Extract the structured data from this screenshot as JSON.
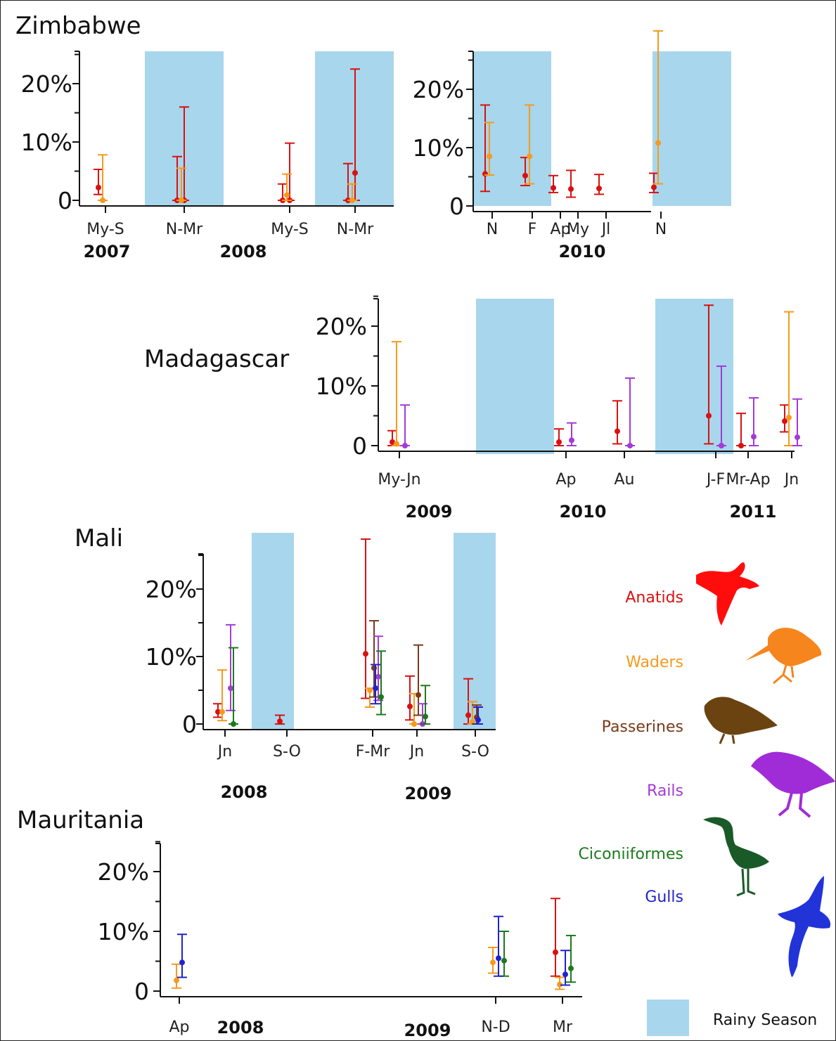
{
  "colors": {
    "rain": "#a8d6ec",
    "Anatids": "#d81111",
    "Waders": "#f59a1c",
    "Passerines": "#7a3a19",
    "Rails": "#a33bd6",
    "Ciconiiformes": "#1c7a1c",
    "Gulls": "#2222cc"
  },
  "legend": {
    "items": [
      {
        "label": "Anatids",
        "icon": "duck-silhouette-icon"
      },
      {
        "label": "Waders",
        "icon": "wader-silhouette-icon"
      },
      {
        "label": "Passerines",
        "icon": "sparrow-silhouette-icon"
      },
      {
        "label": "Rails",
        "icon": "rail-silhouette-icon"
      },
      {
        "label": "Ciconiiformes",
        "icon": "heron-silhouette-icon"
      },
      {
        "label": "Gulls",
        "icon": "gull-silhouette-icon"
      }
    ],
    "rainy_label": "Rainy Season"
  },
  "chart_data": [
    {
      "type": "scatter",
      "country": "Zimbabwe",
      "title": "Zimbabwe",
      "ylim": [
        0,
        26
      ],
      "yticks": [
        "0",
        "10%",
        "20%"
      ],
      "categories": [
        "My-S",
        "N-Mr",
        "My-S",
        "N-Mr"
      ],
      "years": [
        "2007",
        "2008"
      ],
      "series": [
        {
          "name": "Anatids",
          "points": [
            {
              "cat": 0,
              "y": 2.2,
              "lo": 1,
              "hi": 5.3
            },
            {
              "cat": 1,
              "y": 0,
              "lo": 0,
              "hi": 7.5
            },
            {
              "cat": 1,
              "y": 0,
              "lo": 0,
              "hi": 16
            },
            {
              "cat": 2,
              "y": 0,
              "lo": 0,
              "hi": 2.8
            },
            {
              "cat": 2,
              "y": 0,
              "lo": 0,
              "hi": 9.8
            },
            {
              "cat": 3,
              "y": 0,
              "lo": 0,
              "hi": 6.3
            },
            {
              "cat": 3,
              "y": 4.7,
              "lo": 0,
              "hi": 22.5
            }
          ]
        },
        {
          "name": "Waders",
          "points": [
            {
              "cat": 0,
              "y": 0,
              "lo": 0,
              "hi": 7.8
            },
            {
              "cat": 1,
              "y": 0,
              "lo": 0,
              "hi": 5.5
            },
            {
              "cat": 2,
              "y": 0.9,
              "lo": 0,
              "hi": 4.5
            },
            {
              "cat": 3,
              "y": 0,
              "lo": 0,
              "hi": 2.8
            }
          ]
        }
      ]
    },
    {
      "type": "scatter",
      "country": "Zimbabwe",
      "ylim": [
        0,
        26
      ],
      "yticks": [
        "0",
        "10%",
        "20%"
      ],
      "categories": [
        "N",
        "F",
        "Ap",
        "My",
        "Jl",
        "N"
      ],
      "years": [
        "2010"
      ],
      "series": [
        {
          "name": "Anatids",
          "points": [
            {
              "cat": 0,
              "y": 5.5,
              "lo": 2.5,
              "hi": 17.3
            },
            {
              "cat": 1,
              "y": 5.2,
              "lo": 3.5,
              "hi": 8.3
            },
            {
              "cat": 2,
              "y": 3.1,
              "lo": 2.3,
              "hi": 5.2
            },
            {
              "cat": 3,
              "y": 2.9,
              "lo": 1.5,
              "hi": 6.1
            },
            {
              "cat": 4,
              "y": 3,
              "lo": 2,
              "hi": 5.4
            },
            {
              "cat": 5,
              "y": 3.2,
              "lo": 2.3,
              "hi": 5.6
            }
          ]
        },
        {
          "name": "Waders",
          "points": [
            {
              "cat": 0,
              "y": 8.5,
              "lo": 5.3,
              "hi": 14.3
            },
            {
              "cat": 1,
              "y": 8.5,
              "lo": 3.8,
              "hi": 17.3
            },
            {
              "cat": 5,
              "y": 10.8,
              "lo": 3.8,
              "hi": 30
            }
          ]
        }
      ]
    },
    {
      "type": "scatter",
      "country": "Madagascar",
      "title": "Madagascar",
      "ylim": [
        0,
        25
      ],
      "yticks": [
        "0",
        "10%",
        "20%"
      ],
      "categories": [
        "My-Jn",
        "Ap",
        "Au",
        "J-F",
        "Mr-Ap",
        "Jn"
      ],
      "years": [
        "2009",
        "2010",
        "2011"
      ],
      "series": [
        {
          "name": "Anatids",
          "points": [
            {
              "cat": 0,
              "y": 0.6,
              "lo": 0,
              "hi": 2.5
            },
            {
              "cat": 1,
              "y": 0.6,
              "lo": 0,
              "hi": 2.8
            },
            {
              "cat": 2,
              "y": 2.4,
              "lo": 0.3,
              "hi": 7.5
            },
            {
              "cat": 3,
              "y": 5,
              "lo": 0.3,
              "hi": 23.5
            },
            {
              "cat": 4,
              "y": 0,
              "lo": 0,
              "hi": 5.4
            },
            {
              "cat": 5,
              "y": 4.1,
              "lo": 2.3,
              "hi": 6.8
            }
          ]
        },
        {
          "name": "Waders",
          "points": [
            {
              "cat": 0,
              "y": 0.3,
              "lo": 0,
              "hi": 17.4
            },
            {
              "cat": 5,
              "y": 4.7,
              "lo": 0,
              "hi": 22.4
            }
          ]
        },
        {
          "name": "Rails",
          "points": [
            {
              "cat": 0,
              "y": 0,
              "lo": 0,
              "hi": 6.8
            },
            {
              "cat": 1,
              "y": 0.9,
              "lo": 0,
              "hi": 3.8
            },
            {
              "cat": 2,
              "y": 0,
              "lo": 0,
              "hi": 11.3
            },
            {
              "cat": 3,
              "y": 0,
              "lo": 0,
              "hi": 13.3
            },
            {
              "cat": 4,
              "y": 1.5,
              "lo": 0,
              "hi": 8
            },
            {
              "cat": 5,
              "y": 1.4,
              "lo": 0,
              "hi": 7.8
            }
          ]
        }
      ]
    },
    {
      "type": "scatter",
      "country": "Mali",
      "title": "Mali",
      "ylim": [
        0,
        26
      ],
      "yticks": [
        "0",
        "10%",
        "20%"
      ],
      "categories": [
        "Jn",
        "S-O",
        "F-Mr",
        "Jn",
        "S-O"
      ],
      "years": [
        "2008",
        "2009"
      ],
      "series": [
        {
          "name": "Anatids",
          "points": [
            {
              "cat": 0,
              "y": 1.8,
              "lo": 1,
              "hi": 3
            },
            {
              "cat": 1,
              "y": 0.4,
              "lo": 0,
              "hi": 1.3
            },
            {
              "cat": 2,
              "y": 10.4,
              "lo": 3.8,
              "hi": 27.4
            },
            {
              "cat": 3,
              "y": 2.6,
              "lo": 0.6,
              "hi": 7.1
            },
            {
              "cat": 4,
              "y": 1.3,
              "lo": 0,
              "hi": 6.7
            }
          ]
        },
        {
          "name": "Waders",
          "points": [
            {
              "cat": 0,
              "y": 1.8,
              "lo": 0.5,
              "hi": 8
            },
            {
              "cat": 2,
              "y": 5,
              "lo": 2.5,
              "hi": 5.3
            },
            {
              "cat": 3,
              "y": 0,
              "lo": 0,
              "hi": 4.5
            },
            {
              "cat": 4,
              "y": 0.3,
              "lo": 0,
              "hi": 3.3
            }
          ]
        },
        {
          "name": "Passerines",
          "points": [
            {
              "cat": 2,
              "y": 8.3,
              "lo": 4,
              "hi": 15.3
            },
            {
              "cat": 3,
              "y": 4.3,
              "lo": 1.3,
              "hi": 11.7
            },
            {
              "cat": 4,
              "y": 1,
              "lo": 0,
              "hi": 2.8
            }
          ]
        },
        {
          "name": "Rails",
          "points": [
            {
              "cat": 0,
              "y": 5.3,
              "lo": 2,
              "hi": 14.7
            },
            {
              "cat": 2,
              "y": 7,
              "lo": 3.5,
              "hi": 13
            },
            {
              "cat": 3,
              "y": 0,
              "lo": 0,
              "hi": 3
            }
          ]
        },
        {
          "name": "Ciconiiformes",
          "points": [
            {
              "cat": 0,
              "y": 0,
              "lo": 0,
              "hi": 11.3
            },
            {
              "cat": 2,
              "y": 4,
              "lo": 1.4,
              "hi": 10.8
            },
            {
              "cat": 3,
              "y": 1.1,
              "lo": 0,
              "hi": 5.7
            }
          ]
        },
        {
          "name": "Gulls",
          "points": [
            {
              "cat": 2,
              "y": 5.3,
              "lo": 3,
              "hi": 8.8
            },
            {
              "cat": 4,
              "y": 0.6,
              "lo": 0,
              "hi": 2.5
            }
          ]
        }
      ]
    },
    {
      "type": "scatter",
      "country": "Mauritania",
      "title": "Mauritania",
      "ylim": [
        0,
        25
      ],
      "yticks": [
        "0",
        "10%",
        "20%"
      ],
      "categories": [
        "Ap",
        "N-D",
        "Mr"
      ],
      "years": [
        "2008",
        "2009"
      ],
      "series": [
        {
          "name": "Anatids",
          "points": [
            {
              "cat": 2,
              "y": 6.5,
              "lo": 2.5,
              "hi": 15.5
            }
          ]
        },
        {
          "name": "Waders",
          "points": [
            {
              "cat": 0,
              "y": 1.8,
              "lo": 0.5,
              "hi": 4.5
            },
            {
              "cat": 1,
              "y": 4.8,
              "lo": 3,
              "hi": 7.3
            },
            {
              "cat": 2,
              "y": 1.1,
              "lo": 0.3,
              "hi": 2.3
            }
          ]
        },
        {
          "name": "Ciconiiformes",
          "points": [
            {
              "cat": 1,
              "y": 5.1,
              "lo": 2.5,
              "hi": 10
            },
            {
              "cat": 2,
              "y": 3.8,
              "lo": 1.5,
              "hi": 9.3
            }
          ]
        },
        {
          "name": "Gulls",
          "points": [
            {
              "cat": 0,
              "y": 4.8,
              "lo": 2.3,
              "hi": 9.5
            },
            {
              "cat": 1,
              "y": 5.5,
              "lo": 2.5,
              "hi": 12.5
            },
            {
              "cat": 2,
              "y": 2.8,
              "lo": 1,
              "hi": 6.8
            }
          ]
        }
      ]
    }
  ]
}
